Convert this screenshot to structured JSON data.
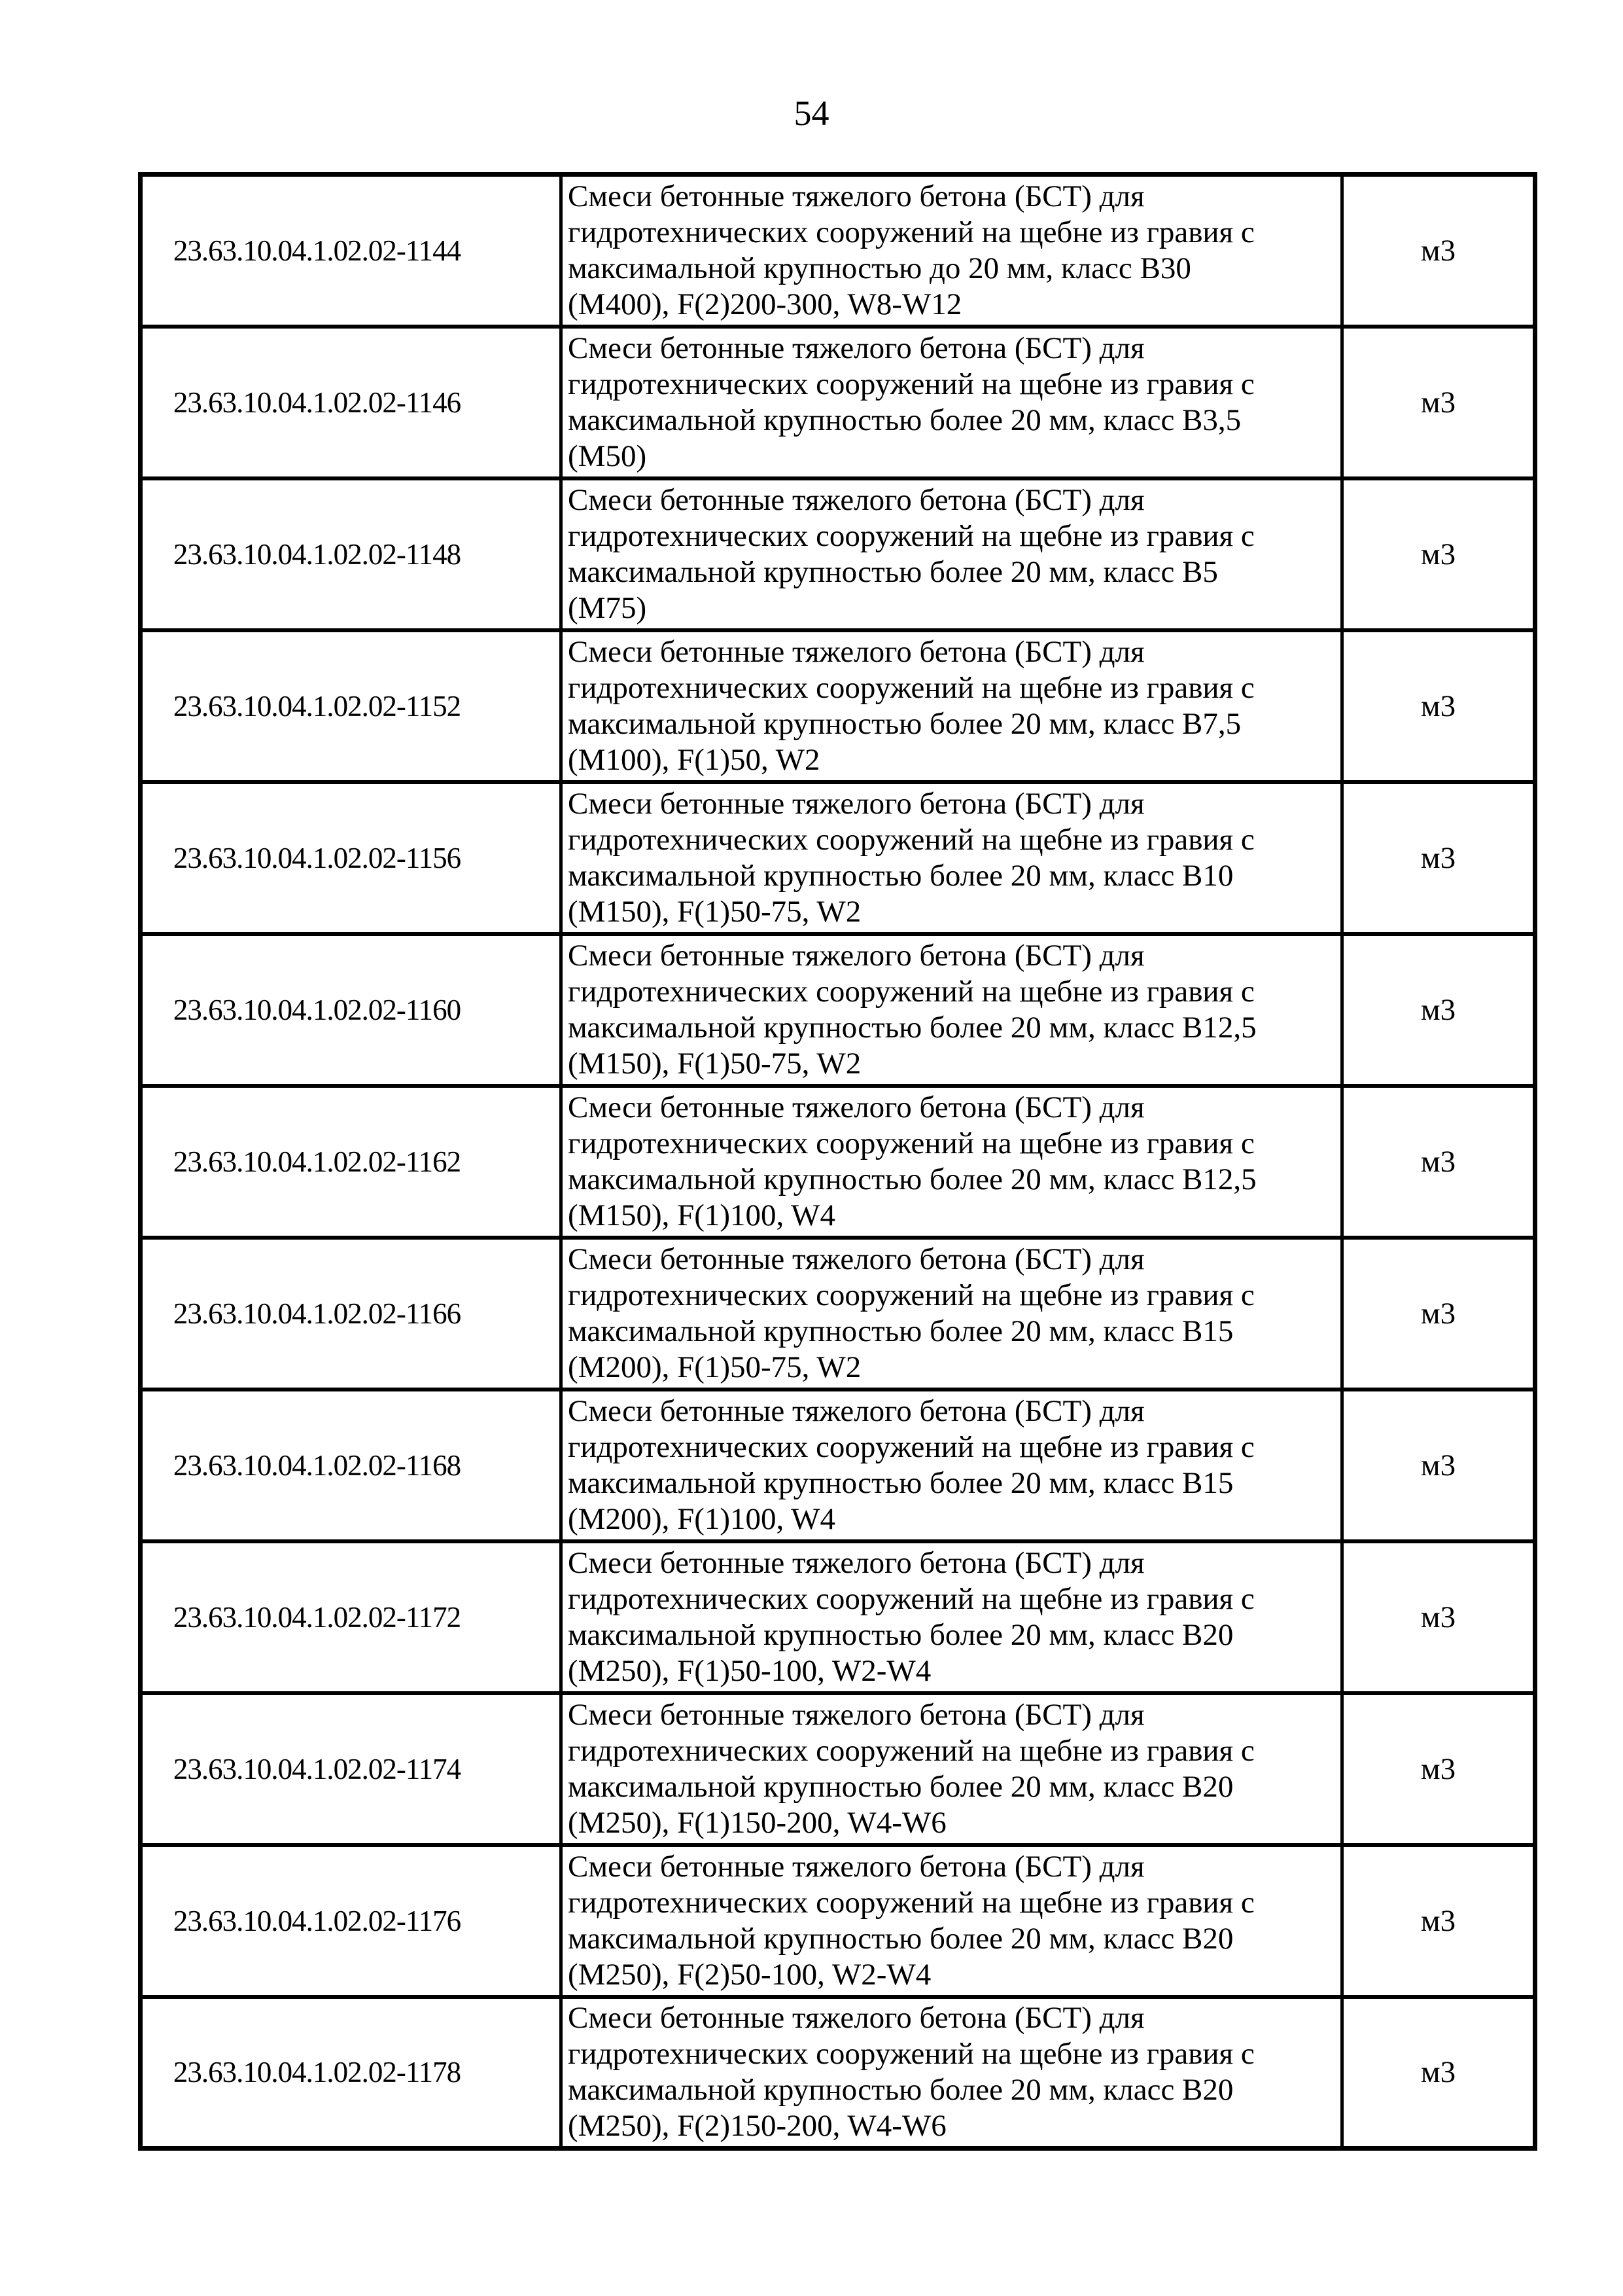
{
  "page": {
    "number": "54"
  },
  "table": {
    "unit_label": "м3",
    "rows": [
      {
        "code": "23.63.10.04.1.02.02-1144",
        "description": "Смеси бетонные тяжелого бетона (БСТ) для\nгидротехнических сооружений на щебне из гравия с\nмаксимальной крупностью до 20 мм, класс В30\n(М400), F(2)200-300, W8-W12",
        "unit": "м3"
      },
      {
        "code": "23.63.10.04.1.02.02-1146",
        "description": "Смеси бетонные тяжелого бетона (БСТ) для\nгидротехнических сооружений на щебне из гравия с\nмаксимальной крупностью более 20 мм, класс В3,5\n(М50)",
        "unit": "м3"
      },
      {
        "code": "23.63.10.04.1.02.02-1148",
        "description": "Смеси бетонные тяжелого бетона (БСТ) для\nгидротехнических сооружений на щебне из гравия с\nмаксимальной крупностью более 20 мм, класс В5\n(М75)",
        "unit": "м3"
      },
      {
        "code": "23.63.10.04.1.02.02-1152",
        "description": "Смеси бетонные тяжелого бетона (БСТ) для\nгидротехнических сооружений на щебне из гравия с\nмаксимальной крупностью более 20 мм, класс В7,5\n(М100), F(1)50, W2",
        "unit": "м3"
      },
      {
        "code": "23.63.10.04.1.02.02-1156",
        "description": "Смеси бетонные тяжелого бетона (БСТ) для\nгидротехнических сооружений на щебне из гравия с\nмаксимальной крупностью более 20 мм, класс В10\n(М150), F(1)50-75, W2",
        "unit": "м3"
      },
      {
        "code": "23.63.10.04.1.02.02-1160",
        "description": "Смеси бетонные тяжелого бетона (БСТ) для\nгидротехнических сооружений на щебне из гравия с\nмаксимальной крупностью более 20 мм, класс В12,5\n(М150), F(1)50-75, W2",
        "unit": "м3"
      },
      {
        "code": "23.63.10.04.1.02.02-1162",
        "description": "Смеси бетонные тяжелого бетона (БСТ) для\nгидротехнических сооружений на щебне из гравия с\nмаксимальной крупностью более 20 мм, класс В12,5\n(М150), F(1)100, W4",
        "unit": "м3"
      },
      {
        "code": "23.63.10.04.1.02.02-1166",
        "description": "Смеси бетонные тяжелого бетона (БСТ) для\nгидротехнических сооружений на щебне из гравия с\nмаксимальной крупностью более 20 мм, класс В15\n(М200), F(1)50-75, W2",
        "unit": "м3"
      },
      {
        "code": "23.63.10.04.1.02.02-1168",
        "description": "Смеси бетонные тяжелого бетона (БСТ) для\nгидротехнических сооружений на щебне из гравия с\nмаксимальной крупностью более 20 мм, класс В15\n(М200), F(1)100, W4",
        "unit": "м3"
      },
      {
        "code": "23.63.10.04.1.02.02-1172",
        "description": "Смеси бетонные тяжелого бетона (БСТ) для\nгидротехнических сооружений на щебне из гравия с\nмаксимальной крупностью более 20 мм, класс В20\n(М250), F(1)50-100, W2-W4",
        "unit": "м3"
      },
      {
        "code": "23.63.10.04.1.02.02-1174",
        "description": "Смеси бетонные тяжелого бетона (БСТ) для\nгидротехнических сооружений на щебне из гравия с\nмаксимальной крупностью более 20 мм, класс В20\n(М250), F(1)150-200, W4-W6",
        "unit": "м3"
      },
      {
        "code": "23.63.10.04.1.02.02-1176",
        "description": "Смеси бетонные тяжелого бетона (БСТ) для\nгидротехнических сооружений на щебне из гравия с\nмаксимальной крупностью более 20 мм, класс В20\n(М250), F(2)50-100, W2-W4",
        "unit": "м3"
      },
      {
        "code": "23.63.10.04.1.02.02-1178",
        "description": "Смеси бетонные тяжелого бетона (БСТ) для\nгидротехнических сооружений на щебне из гравия с\nмаксимальной крупностью более 20 мм, класс В20\n(М250), F(2)150-200, W4-W6",
        "unit": "м3"
      }
    ]
  }
}
